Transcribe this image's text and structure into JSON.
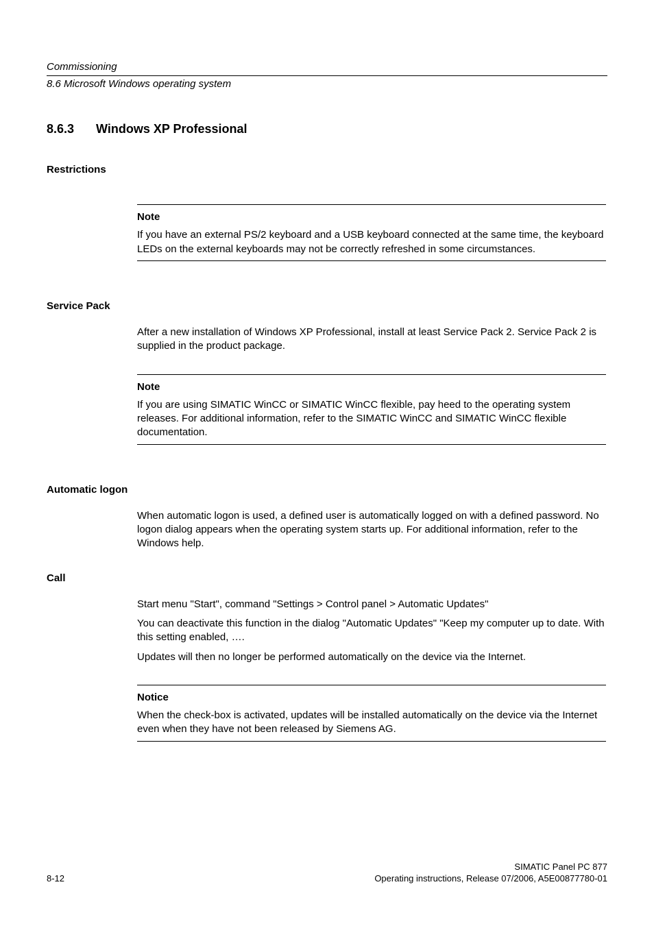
{
  "header": {
    "chapter": "Commissioning",
    "section": "8.6 Microsoft Windows operating system"
  },
  "title": {
    "number": "8.6.3",
    "text": "Windows XP Professional"
  },
  "restrictions": {
    "heading": "Restrictions",
    "note_label": "Note",
    "note_text": "If you have an external PS/2 keyboard and a USB keyboard connected at the same time, the keyboard LEDs on the external keyboards may not be correctly refreshed in some circumstances."
  },
  "service_pack": {
    "heading": "Service Pack",
    "body": "After a new installation of Windows XP Professional, install at least Service Pack 2. Service Pack 2 is supplied in the product package.",
    "note_label": "Note",
    "note_text": "If you are using SIMATIC WinCC or SIMATIC WinCC flexible, pay heed to the operating system releases. For additional information, refer to the SIMATIC WinCC and SIMATIC WinCC flexible documentation."
  },
  "auto_logon": {
    "heading": "Automatic logon",
    "body": "When automatic logon is used, a defined user is automatically logged on with a defined password. No logon dialog appears when the operating system starts up. For additional information, refer to the Windows help."
  },
  "call": {
    "heading": "Call",
    "p1": "Start menu \"Start\", command \"Settings > Control panel > Automatic Updates\"",
    "p2": "You can deactivate this function in the dialog \"Automatic Updates\" \"Keep my computer up to date. With this setting enabled, ….",
    "p3": "Updates will then no longer be performed automatically on the device via the Internet.",
    "notice_label": "Notice",
    "notice_text": "When the check-box is activated, updates will be installed automatically on the device via the Internet even when they have not been released by Siemens AG."
  },
  "footer": {
    "page_num": "8-12",
    "product": "SIMATIC Panel PC 877",
    "doc_line": "Operating instructions, Release 07/2006, A5E00877780-01"
  }
}
